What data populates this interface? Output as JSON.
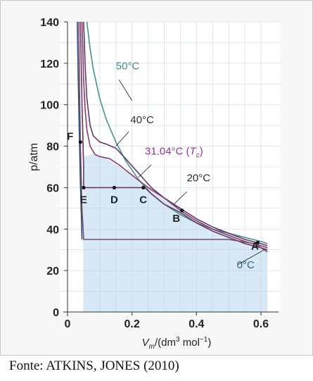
{
  "chart_data": {
    "type": "line",
    "title": "",
    "xlabel_main": "V",
    "xlabel_sub": "m",
    "xlabel_rest": "/(dm",
    "xlabel_sup1": "3",
    "xlabel_mid": " mol",
    "xlabel_sup2": "−1",
    "xlabel_end": ")",
    "ylabel": "p/atm",
    "xlim": [
      0,
      0.62
    ],
    "ylim": [
      0,
      140
    ],
    "xticks": [
      "0",
      "0.2",
      "0.4",
      "0.6"
    ],
    "xtick_values": [
      0,
      0.2,
      0.4,
      0.6
    ],
    "yticks": [
      "0",
      "20",
      "40",
      "60",
      "80",
      "100",
      "120",
      "140"
    ],
    "ytick_values": [
      0,
      20,
      40,
      60,
      80,
      100,
      120,
      140
    ],
    "grid": true,
    "series": [
      {
        "name": "50°C",
        "color": "#4a8f8f",
        "x": [
          0.06,
          0.07,
          0.08,
          0.1,
          0.12,
          0.15,
          0.18,
          0.22,
          0.26,
          0.3,
          0.35,
          0.4,
          0.45,
          0.5,
          0.55,
          0.6,
          0.62
        ],
        "y": [
          140,
          127,
          117,
          103,
          93,
          82,
          73,
          64,
          57,
          52,
          47,
          43,
          40,
          38,
          36,
          34,
          33
        ]
      },
      {
        "name": "40°C",
        "color": "#5e3a6e",
        "x": [
          0.05,
          0.055,
          0.06,
          0.07,
          0.08,
          0.1,
          0.12,
          0.15,
          0.18,
          0.22,
          0.26,
          0.3,
          0.35,
          0.4,
          0.45,
          0.5,
          0.55,
          0.6,
          0.62
        ],
        "y": [
          140,
          118,
          103,
          90,
          85,
          82,
          81,
          79,
          74,
          67,
          60,
          55,
          50,
          45,
          41,
          38,
          35,
          33,
          32
        ]
      },
      {
        "name": "31.04°C (Tc)",
        "color": "#8a3a6a",
        "x": [
          0.045,
          0.05,
          0.055,
          0.06,
          0.07,
          0.085,
          0.1,
          0.13,
          0.16,
          0.2,
          0.25,
          0.3,
          0.35,
          0.4,
          0.45,
          0.5,
          0.55,
          0.6,
          0.62
        ],
        "y": [
          140,
          112,
          97,
          88,
          80,
          76,
          75,
          74,
          71,
          66,
          60,
          55,
          49,
          44,
          40,
          37,
          34,
          32,
          31
        ]
      },
      {
        "name": "20°C",
        "color": "#6a3a5e",
        "x": [
          0.04,
          0.045,
          0.05,
          0.05,
          0.15,
          0.24,
          0.26,
          0.3,
          0.35,
          0.4,
          0.45,
          0.5,
          0.55,
          0.6,
          0.62
        ],
        "y": [
          140,
          100,
          70,
          60,
          60,
          60,
          57,
          52,
          48,
          43,
          39,
          36,
          33,
          31,
          30
        ]
      },
      {
        "name": "0°C",
        "color": "#7a4a6a",
        "x": [
          0.035,
          0.037,
          0.04,
          0.045,
          0.05,
          0.5,
          0.54,
          0.58,
          0.6,
          0.62
        ],
        "y": [
          140,
          110,
          80,
          50,
          35,
          35,
          34,
          33,
          31,
          29
        ]
      },
      {
        "name": "",
        "color": "#2a4f7a",
        "x": [
          0.03,
          0.033,
          0.036,
          0.04,
          0.045
        ],
        "y": [
          140,
          115,
          90,
          62,
          35
        ]
      }
    ],
    "points": [
      {
        "label": "A",
        "x": 0.59,
        "y": 33.5
      },
      {
        "label": "B",
        "x": 0.355,
        "y": 49
      },
      {
        "label": "C",
        "x": 0.235,
        "y": 60
      },
      {
        "label": "D",
        "x": 0.145,
        "y": 60
      },
      {
        "label": "E",
        "x": 0.05,
        "y": 60
      },
      {
        "label": "F",
        "x": 0.04,
        "y": 82
      }
    ],
    "annotations": [
      {
        "text": "50°C",
        "x": 0.15,
        "y": 117
      },
      {
        "text": "40°C",
        "x": 0.195,
        "y": 91
      },
      {
        "text": "31.04°C (",
        "tc": "T",
        "tc_sub": "c",
        "tail": ")",
        "x": 0.24,
        "y": 76
      },
      {
        "text": "20°C",
        "x": 0.37,
        "y": 63
      },
      {
        "text": "0°C",
        "x": 0.525,
        "y": 21
      }
    ],
    "two_phase_region_color": "#d7e8f6"
  },
  "source": "Fonte: ATKINS, JONES (2010)"
}
